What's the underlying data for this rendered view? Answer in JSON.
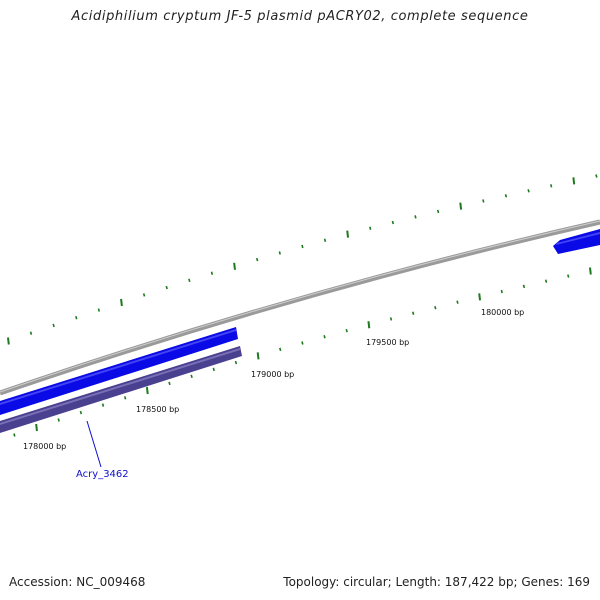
{
  "title": "Acidiphilium cryptum JF-5 plasmid pACRY02, complete sequence",
  "tick_labels": [
    "178000 bp",
    "178500 bp",
    "179000 bp",
    "179500 bp",
    "180000 bp"
  ],
  "genes": [
    {
      "name": "Acry_3462",
      "strand": "reverse"
    }
  ],
  "footer": {
    "accession": "Accession: NC_009468",
    "stats": "Topology: circular; Length: 187,422 bp; Genes: 169"
  },
  "colors": {
    "backbone": "#888888",
    "forward_cds": "#0a0ae6",
    "reverse_cds": "#4a4090",
    "tick": "#1e7a1e",
    "gene_label": "#1010cc"
  }
}
